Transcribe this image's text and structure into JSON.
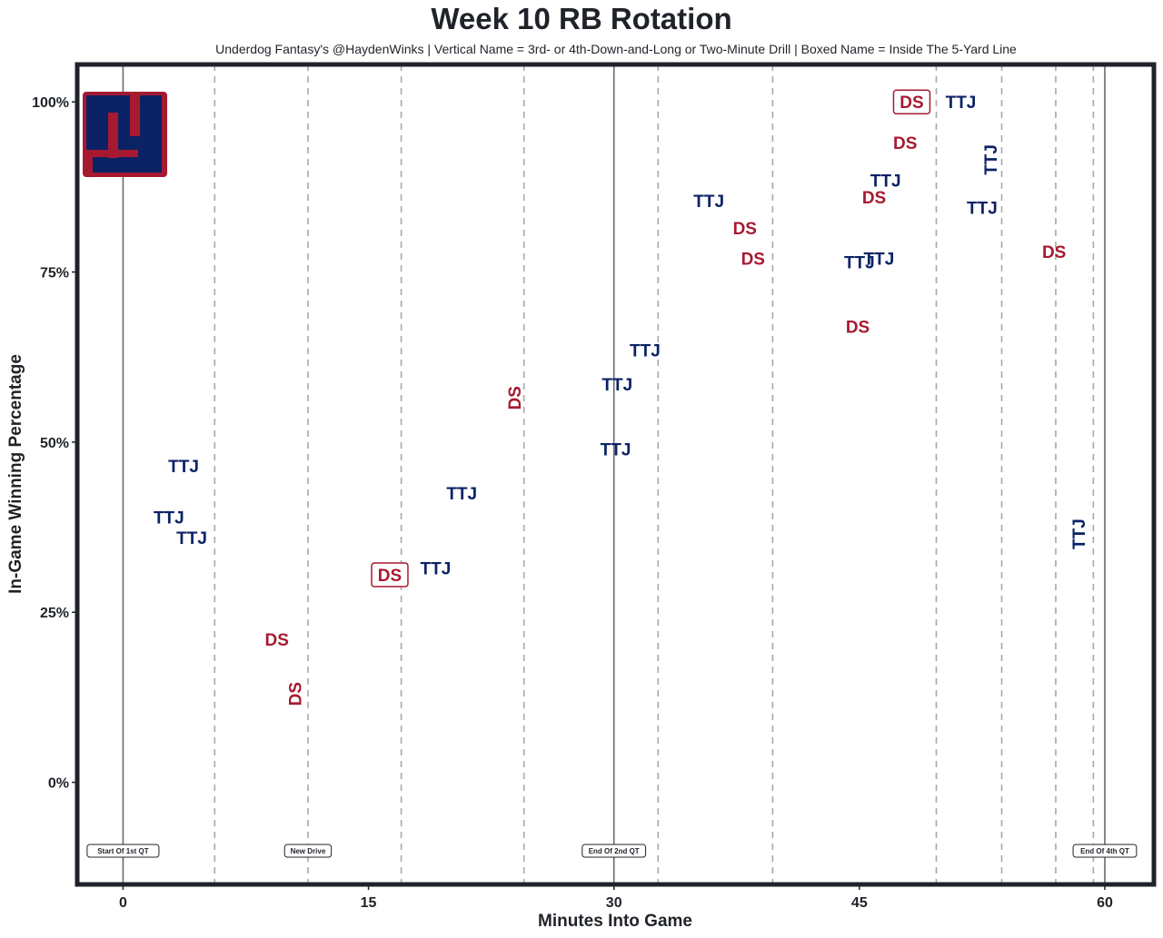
{
  "chart_data": {
    "type": "scatter",
    "title": "Week 10 RB Rotation",
    "subtitle": "Underdog Fantasy's @HaydenWinks | Vertical Name = 3rd- or 4th-Down-and-Long or Two-Minute Drill | Boxed Name = Inside The 5-Yard Line",
    "xlabel": "Minutes Into Game",
    "ylabel": "In-Game Winning Percentage",
    "xlim": [
      -2.8,
      63
    ],
    "ylim": [
      -15,
      105.5
    ],
    "xticks": [
      0,
      15,
      30,
      45,
      60
    ],
    "xtick_labels": [
      "0",
      "15",
      "30",
      "45",
      "60"
    ],
    "yticks": [
      0,
      25,
      50,
      75,
      100
    ],
    "ytick_labels": [
      "0%",
      "25%",
      "50%",
      "75%",
      "100%"
    ],
    "grid": false,
    "team_logo": "ny",
    "colors": {
      "TTJ": "#0b2265",
      "DS": "#a71930",
      "frame": "#1f2329"
    },
    "solid_lines_x": [
      0,
      30,
      60
    ],
    "dashed_lines_x": [
      5.6,
      11.3,
      17,
      24.5,
      32.7,
      39.7,
      49.7,
      53.7,
      57,
      59.3
    ],
    "annotations": [
      {
        "x": 0,
        "text": "Start Of 1st QT"
      },
      {
        "x": 11.3,
        "text": "New Drive"
      },
      {
        "x": 30,
        "text": "End Of 2nd QT"
      },
      {
        "x": 60,
        "text": "End Of 4th QT"
      }
    ],
    "points": [
      {
        "x": 3.7,
        "y": 46.5,
        "label": "TTJ",
        "vertical": false,
        "boxed": false
      },
      {
        "x": 2.8,
        "y": 39,
        "label": "TTJ",
        "vertical": false,
        "boxed": false
      },
      {
        "x": 4.2,
        "y": 36,
        "label": "TTJ",
        "vertical": false,
        "boxed": false
      },
      {
        "x": 9.4,
        "y": 21,
        "label": "DS",
        "vertical": false,
        "boxed": false
      },
      {
        "x": 10.5,
        "y": 13,
        "label": "DS",
        "vertical": true,
        "boxed": false
      },
      {
        "x": 16.3,
        "y": 30.5,
        "label": "DS",
        "vertical": false,
        "boxed": true
      },
      {
        "x": 19.1,
        "y": 31.5,
        "label": "TTJ",
        "vertical": false,
        "boxed": false
      },
      {
        "x": 20.7,
        "y": 42.5,
        "label": "TTJ",
        "vertical": false,
        "boxed": false
      },
      {
        "x": 23.9,
        "y": 56.5,
        "label": "DS",
        "vertical": true,
        "boxed": false
      },
      {
        "x": 30.2,
        "y": 58.5,
        "label": "TTJ",
        "vertical": false,
        "boxed": false
      },
      {
        "x": 30.1,
        "y": 49,
        "label": "TTJ",
        "vertical": false,
        "boxed": false
      },
      {
        "x": 31.9,
        "y": 63.5,
        "label": "TTJ",
        "vertical": false,
        "boxed": false
      },
      {
        "x": 35.8,
        "y": 85.5,
        "label": "TTJ",
        "vertical": false,
        "boxed": false
      },
      {
        "x": 38.0,
        "y": 81.5,
        "label": "DS",
        "vertical": false,
        "boxed": false
      },
      {
        "x": 38.5,
        "y": 77,
        "label": "DS",
        "vertical": false,
        "boxed": false
      },
      {
        "x": 45.0,
        "y": 76.5,
        "label": "TTJ",
        "vertical": false,
        "boxed": false
      },
      {
        "x": 46.2,
        "y": 77,
        "label": "TTJ",
        "vertical": false,
        "boxed": false
      },
      {
        "x": 44.9,
        "y": 67,
        "label": "DS",
        "vertical": false,
        "boxed": false
      },
      {
        "x": 45.9,
        "y": 86,
        "label": "DS",
        "vertical": false,
        "boxed": false
      },
      {
        "x": 46.6,
        "y": 88.5,
        "label": "TTJ",
        "vertical": false,
        "boxed": false
      },
      {
        "x": 47.8,
        "y": 94,
        "label": "DS",
        "vertical": false,
        "boxed": false
      },
      {
        "x": 48.2,
        "y": 100,
        "label": "DS",
        "vertical": false,
        "boxed": true
      },
      {
        "x": 51.2,
        "y": 100,
        "label": "TTJ",
        "vertical": false,
        "boxed": false
      },
      {
        "x": 53.0,
        "y": 91.5,
        "label": "TTJ",
        "vertical": true,
        "boxed": false
      },
      {
        "x": 52.5,
        "y": 84.5,
        "label": "TTJ",
        "vertical": false,
        "boxed": false
      },
      {
        "x": 56.9,
        "y": 78,
        "label": "DS",
        "vertical": false,
        "boxed": false
      },
      {
        "x": 58.4,
        "y": 36.5,
        "label": "TTJ",
        "vertical": true,
        "boxed": false
      }
    ]
  }
}
